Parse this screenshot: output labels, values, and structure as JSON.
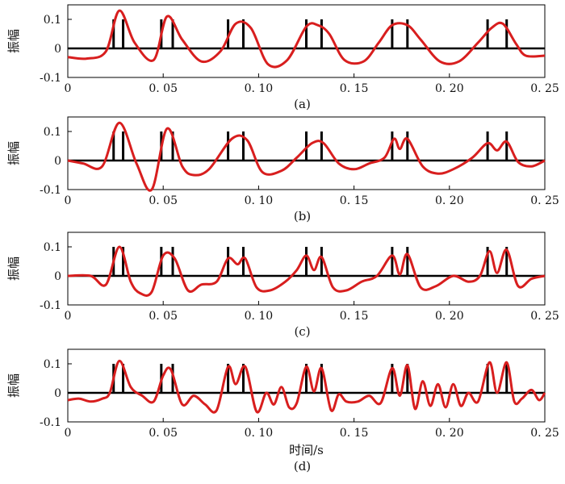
{
  "colors": {
    "signal": "#d81e1e",
    "spikes": "#000000",
    "axis": "#000000"
  },
  "chart_data": [
    {
      "type": "line",
      "caption": "(a)",
      "ylabel": "振幅",
      "xlabel": "",
      "xlim": [
        0,
        0.25
      ],
      "ylim": [
        -0.1,
        0.15
      ],
      "xticks": [
        "0",
        "0. 05",
        "0. 10",
        "0. 15",
        "0. 20",
        "0. 25"
      ],
      "yticks": [
        "0.1",
        "0",
        "-0.1"
      ],
      "spikes": {
        "x": [
          0.024,
          0.029,
          0.049,
          0.055,
          0.084,
          0.092,
          0.125,
          0.133,
          0.17,
          0.178,
          0.22,
          0.23
        ],
        "height": 0.1
      },
      "series": [
        {
          "x": [
            0,
            0.01,
            0.02,
            0.027,
            0.035,
            0.045,
            0.052,
            0.06,
            0.07,
            0.08,
            0.088,
            0.096,
            0.105,
            0.115,
            0.125,
            0.131,
            0.137,
            0.145,
            0.155,
            0.163,
            0.17,
            0.178,
            0.185,
            0.195,
            0.205,
            0.215,
            0.222,
            0.228,
            0.235,
            0.24,
            0.25
          ],
          "y": [
            -0.03,
            -0.035,
            -0.01,
            0.13,
            0.02,
            -0.04,
            0.11,
            0.03,
            -0.045,
            -0.01,
            0.085,
            0.07,
            -0.055,
            -0.04,
            0.075,
            0.08,
            0.05,
            -0.04,
            -0.045,
            0.02,
            0.08,
            0.08,
            0.03,
            -0.045,
            -0.045,
            0.02,
            0.07,
            0.085,
            0.015,
            -0.025,
            -0.025
          ]
        }
      ]
    },
    {
      "type": "line",
      "caption": "(b)",
      "ylabel": "振幅",
      "xlabel": "",
      "xlim": [
        0,
        0.25
      ],
      "ylim": [
        -0.1,
        0.15
      ],
      "xticks": [
        "0",
        "0. 05",
        "0. 10",
        "0. 15",
        "0. 20",
        "0. 25"
      ],
      "yticks": [
        "0.1",
        "0",
        "-0.1"
      ],
      "spikes": {
        "x": [
          0.024,
          0.029,
          0.049,
          0.055,
          0.084,
          0.092,
          0.125,
          0.133,
          0.17,
          0.178,
          0.22,
          0.23
        ],
        "height": 0.1
      },
      "series": [
        {
          "x": [
            0,
            0.008,
            0.018,
            0.027,
            0.036,
            0.044,
            0.052,
            0.06,
            0.066,
            0.074,
            0.086,
            0.094,
            0.102,
            0.112,
            0.12,
            0.128,
            0.134,
            0.142,
            0.15,
            0.158,
            0.166,
            0.171,
            0.174,
            0.178,
            0.186,
            0.194,
            0.202,
            0.212,
            0.22,
            0.225,
            0.23,
            0.236,
            0.243,
            0.25
          ],
          "y": [
            0,
            -0.01,
            -0.02,
            0.13,
            -0.01,
            -0.1,
            0.11,
            -0.02,
            -0.05,
            -0.03,
            0.075,
            0.07,
            -0.04,
            -0.035,
            0.01,
            0.06,
            0.06,
            -0.01,
            -0.03,
            -0.01,
            0.01,
            0.075,
            0.04,
            0.075,
            -0.02,
            -0.045,
            -0.03,
            0.01,
            0.06,
            0.035,
            0.065,
            -0.005,
            -0.02,
            0
          ]
        }
      ]
    },
    {
      "type": "line",
      "caption": "(c)",
      "ylabel": "振幅",
      "xlabel": "",
      "xlim": [
        0,
        0.25
      ],
      "ylim": [
        -0.1,
        0.15
      ],
      "xticks": [
        "0",
        "0. 05",
        "0. 10",
        "0. 15",
        "0. 20",
        "0. 25"
      ],
      "yticks": [
        "0.1",
        "0",
        "-0.1"
      ],
      "spikes": {
        "x": [
          0.024,
          0.029,
          0.049,
          0.055,
          0.084,
          0.092,
          0.125,
          0.133,
          0.17,
          0.178,
          0.22,
          0.23
        ],
        "height": 0.1
      },
      "series": [
        {
          "x": [
            0,
            0.012,
            0.02,
            0.027,
            0.033,
            0.038,
            0.044,
            0.05,
            0.056,
            0.063,
            0.07,
            0.078,
            0.084,
            0.089,
            0.093,
            0.099,
            0.106,
            0.114,
            0.12,
            0.125,
            0.129,
            0.133,
            0.139,
            0.146,
            0.154,
            0.162,
            0.17,
            0.174,
            0.178,
            0.185,
            0.193,
            0.202,
            0.21,
            0.216,
            0.221,
            0.225,
            0.23,
            0.236,
            0.243,
            0.25
          ],
          "y": [
            0,
            0,
            -0.03,
            0.1,
            -0.02,
            -0.06,
            -0.055,
            0.07,
            0.06,
            -0.05,
            -0.03,
            -0.02,
            0.06,
            0.04,
            0.06,
            -0.04,
            -0.05,
            -0.02,
            0.02,
            0.07,
            0.02,
            0.065,
            -0.04,
            -0.05,
            -0.02,
            0,
            0.07,
            0.005,
            0.075,
            -0.04,
            -0.035,
            0,
            -0.02,
            0,
            0.085,
            0.01,
            0.09,
            -0.035,
            -0.01,
            0
          ]
        }
      ]
    },
    {
      "type": "line",
      "caption": "(d)",
      "ylabel": "振幅",
      "xlabel": "时间/s",
      "xlim": [
        0,
        0.25
      ],
      "ylim": [
        -0.1,
        0.15
      ],
      "xticks": [
        "0",
        "0. 05",
        "0. 10",
        "0. 15",
        "0. 20",
        "0. 25"
      ],
      "yticks": [
        "0.1",
        "0",
        "-0.1"
      ],
      "spikes": {
        "x": [
          0.024,
          0.029,
          0.049,
          0.055,
          0.084,
          0.092,
          0.125,
          0.133,
          0.17,
          0.178,
          0.22,
          0.23
        ],
        "height": 0.1
      },
      "series": [
        {
          "x": [
            0,
            0.006,
            0.012,
            0.018,
            0.022,
            0.027,
            0.033,
            0.039,
            0.045,
            0.05,
            0.054,
            0.06,
            0.066,
            0.072,
            0.078,
            0.084,
            0.088,
            0.093,
            0.099,
            0.104,
            0.108,
            0.112,
            0.116,
            0.12,
            0.125,
            0.129,
            0.133,
            0.138,
            0.142,
            0.146,
            0.152,
            0.158,
            0.164,
            0.17,
            0.174,
            0.178,
            0.182,
            0.186,
            0.19,
            0.194,
            0.198,
            0.202,
            0.206,
            0.21,
            0.215,
            0.221,
            0.225,
            0.23,
            0.234,
            0.238,
            0.243,
            0.247,
            0.25
          ],
          "y": [
            -0.025,
            -0.02,
            -0.03,
            -0.02,
            0,
            0.11,
            0.02,
            -0.01,
            -0.03,
            0.06,
            0.08,
            -0.04,
            -0.01,
            -0.04,
            -0.06,
            0.09,
            0.03,
            0.09,
            -0.065,
            0.0,
            -0.04,
            0.02,
            -0.05,
            -0.035,
            0.09,
            0.005,
            0.085,
            -0.06,
            -0.005,
            -0.03,
            -0.03,
            -0.01,
            -0.035,
            0.085,
            -0.01,
            0.095,
            -0.055,
            0.04,
            -0.045,
            0.03,
            -0.05,
            0.03,
            -0.045,
            0.0,
            -0.03,
            0.105,
            0.0,
            0.105,
            -0.03,
            -0.02,
            0.01,
            -0.025,
            0.0
          ]
        }
      ]
    }
  ]
}
